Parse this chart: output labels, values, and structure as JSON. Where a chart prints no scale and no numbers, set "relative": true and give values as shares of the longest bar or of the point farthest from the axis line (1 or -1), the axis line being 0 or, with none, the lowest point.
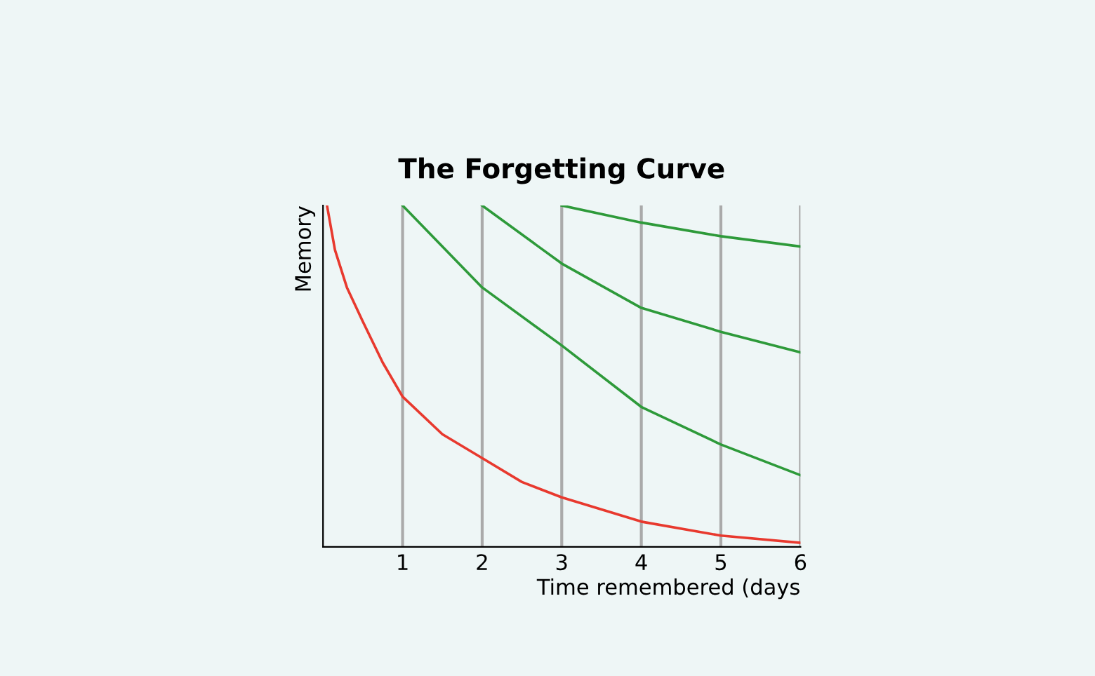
{
  "chart_data": {
    "type": "line",
    "title": "The Forgetting Curve",
    "xlabel": "Time remembered (days",
    "ylabel": "Memory",
    "relative": true,
    "xlim": [
      0,
      6
    ],
    "xticks": [
      1,
      2,
      3,
      4,
      5,
      6
    ],
    "grid": "x",
    "marker": "none",
    "line_style": "solid",
    "series": [
      {
        "color": "#e8392e",
        "x": [
          0.05,
          0.15,
          0.3,
          0.5,
          0.75,
          1,
          1.5,
          2,
          2.5,
          3,
          4,
          5,
          6
        ],
        "values": [
          1.0,
          0.87,
          0.76,
          0.66,
          0.54,
          0.44,
          0.33,
          0.26,
          0.19,
          0.145,
          0.074,
          0.033,
          0.012
        ]
      },
      {
        "color": "#2e9a3a",
        "x": [
          1,
          2,
          3,
          4,
          5,
          6
        ],
        "values": [
          1.0,
          0.76,
          0.59,
          0.41,
          0.3,
          0.21
        ]
      },
      {
        "color": "#2e9a3a",
        "x": [
          2,
          3,
          4,
          5,
          6
        ],
        "values": [
          1.0,
          0.83,
          0.7,
          0.63,
          0.57
        ]
      },
      {
        "color": "#2e9a3a",
        "x": [
          3,
          4,
          5,
          6
        ],
        "values": [
          1.0,
          0.95,
          0.91,
          0.88
        ]
      }
    ]
  }
}
